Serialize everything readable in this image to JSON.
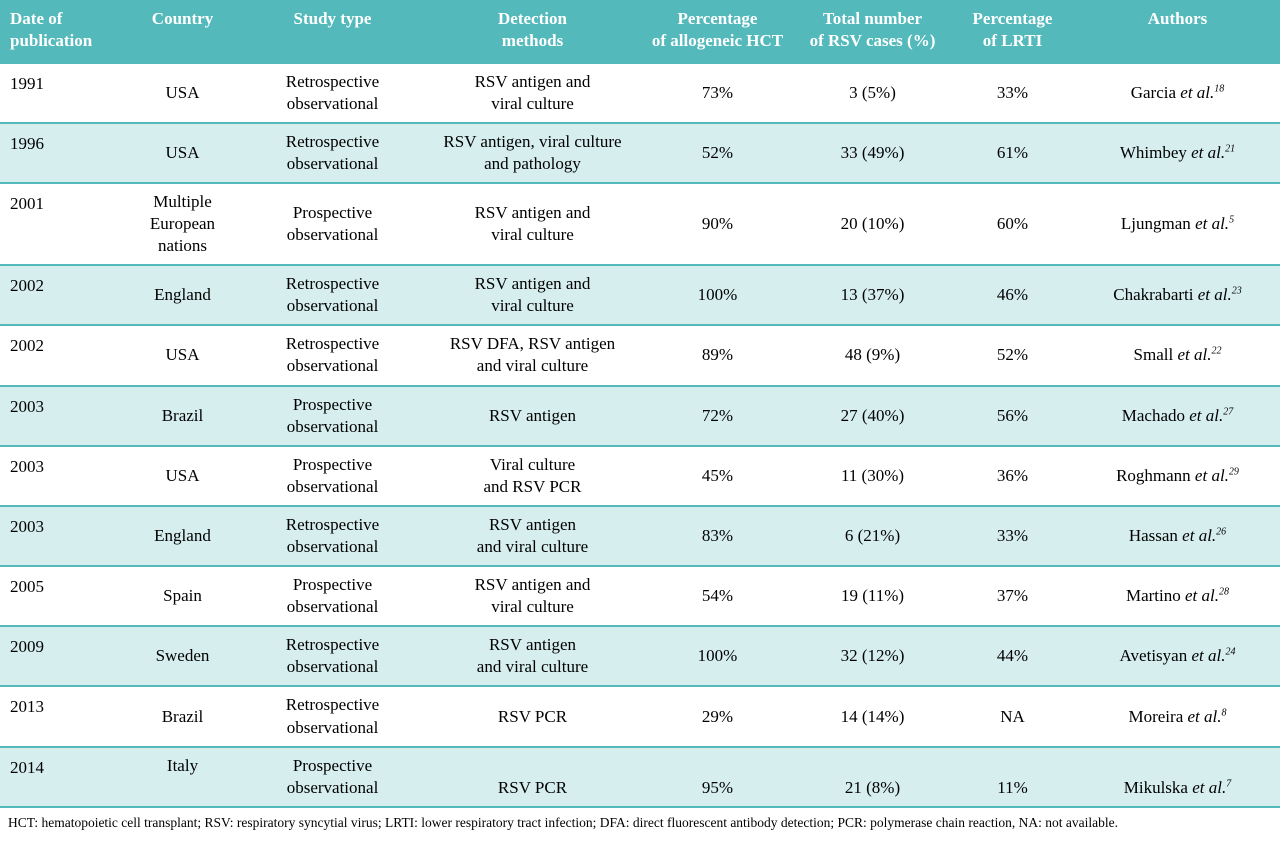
{
  "colors": {
    "header_bg": "#54b9bb",
    "alt_row_bg": "#d6eeee",
    "divider": "#54b9bb"
  },
  "table": {
    "etal_label": "et al.",
    "columns": [
      "Date of\npublication",
      "Country",
      "Study type",
      "Detection\nmethods",
      "Percentage\nof allogeneic HCT",
      "Total number\nof RSV cases (%)",
      "Percentage\nof LRTI",
      "Authors"
    ],
    "rows": [
      {
        "date": "1991",
        "country": "USA",
        "study_type": "Retrospective\nobservational",
        "detection_methods": "RSV antigen and\nviral culture",
        "pct_allogeneic_hct": "73%",
        "total_rsv_cases": "3 (5%)",
        "pct_lrti": "33%",
        "author": "Garcia",
        "ref": "18"
      },
      {
        "date": "1996",
        "country": "USA",
        "study_type": "Retrospective\nobservational",
        "detection_methods": "RSV antigen, viral culture\nand pathology",
        "pct_allogeneic_hct": "52%",
        "total_rsv_cases": "33 (49%)",
        "pct_lrti": "61%",
        "author": "Whimbey",
        "ref": "21"
      },
      {
        "date": "2001",
        "country": "Multiple\nEuropean\nnations",
        "study_type": "Prospective\nobservational",
        "detection_methods": "RSV antigen and\nviral culture",
        "pct_allogeneic_hct": "90%",
        "total_rsv_cases": "20 (10%)",
        "pct_lrti": "60%",
        "author": "Ljungman",
        "ref": "5"
      },
      {
        "date": "2002",
        "country": "England",
        "study_type": "Retrospective\nobservational",
        "detection_methods": "RSV antigen and\nviral culture",
        "pct_allogeneic_hct": "100%",
        "total_rsv_cases": "13 (37%)",
        "pct_lrti": "46%",
        "author": "Chakrabarti",
        "ref": "23"
      },
      {
        "date": "2002",
        "country": "USA",
        "study_type": "Retrospective\nobservational",
        "detection_methods": "RSV DFA, RSV antigen\nand viral culture",
        "pct_allogeneic_hct": "89%",
        "total_rsv_cases": "48 (9%)",
        "pct_lrti": "52%",
        "author": "Small",
        "ref": "22"
      },
      {
        "date": "2003",
        "country": "Brazil",
        "study_type": "Prospective\nobservational",
        "detection_methods": "RSV antigen",
        "pct_allogeneic_hct": "72%",
        "total_rsv_cases": "27 (40%)",
        "pct_lrti": "56%",
        "author": "Machado",
        "ref": "27"
      },
      {
        "date": "2003",
        "country": "USA",
        "study_type": "Prospective\nobservational",
        "detection_methods": "Viral culture\nand RSV PCR",
        "pct_allogeneic_hct": "45%",
        "total_rsv_cases": "11 (30%)",
        "pct_lrti": "36%",
        "author": "Roghmann",
        "ref": "29"
      },
      {
        "date": "2003",
        "country": "England",
        "study_type": "Retrospective\nobservational",
        "detection_methods": "RSV antigen\nand viral culture",
        "pct_allogeneic_hct": "83%",
        "total_rsv_cases": "6 (21%)",
        "pct_lrti": "33%",
        "author": "Hassan",
        "ref": "26"
      },
      {
        "date": "2005",
        "country": "Spain",
        "study_type": "Prospective\nobservational",
        "detection_methods": "RSV antigen and\nviral culture",
        "pct_allogeneic_hct": "54%",
        "total_rsv_cases": "19 (11%)",
        "pct_lrti": "37%",
        "author": "Martino",
        "ref": "28"
      },
      {
        "date": "2009",
        "country": "Sweden",
        "study_type": "Retrospective\nobservational",
        "detection_methods": "RSV antigen\nand viral culture",
        "pct_allogeneic_hct": "100%",
        "total_rsv_cases": "32 (12%)",
        "pct_lrti": "44%",
        "author": "Avetisyan",
        "ref": "24"
      },
      {
        "date": "2013",
        "country": "Brazil",
        "study_type": "Retrospective\nobservational",
        "detection_methods": "RSV PCR",
        "pct_allogeneic_hct": "29%",
        "total_rsv_cases": "14 (14%)",
        "pct_lrti": "NA",
        "author": "Moreira",
        "ref": "8"
      },
      {
        "date": "2014",
        "country": "Italy",
        "study_type": "Prospective\nobservational",
        "detection_methods": "RSV PCR",
        "pct_allogeneic_hct": "95%",
        "total_rsv_cases": "21 (8%)",
        "pct_lrti": "11%",
        "author": "Mikulska",
        "ref": "7"
      }
    ],
    "footnote": "HCT: hematopoietic cell transplant; RSV: respiratory syncytial virus; LRTI: lower respiratory tract infection; DFA: direct fluorescent antibody detection; PCR:  polymerase chain reaction, NA: not available."
  }
}
